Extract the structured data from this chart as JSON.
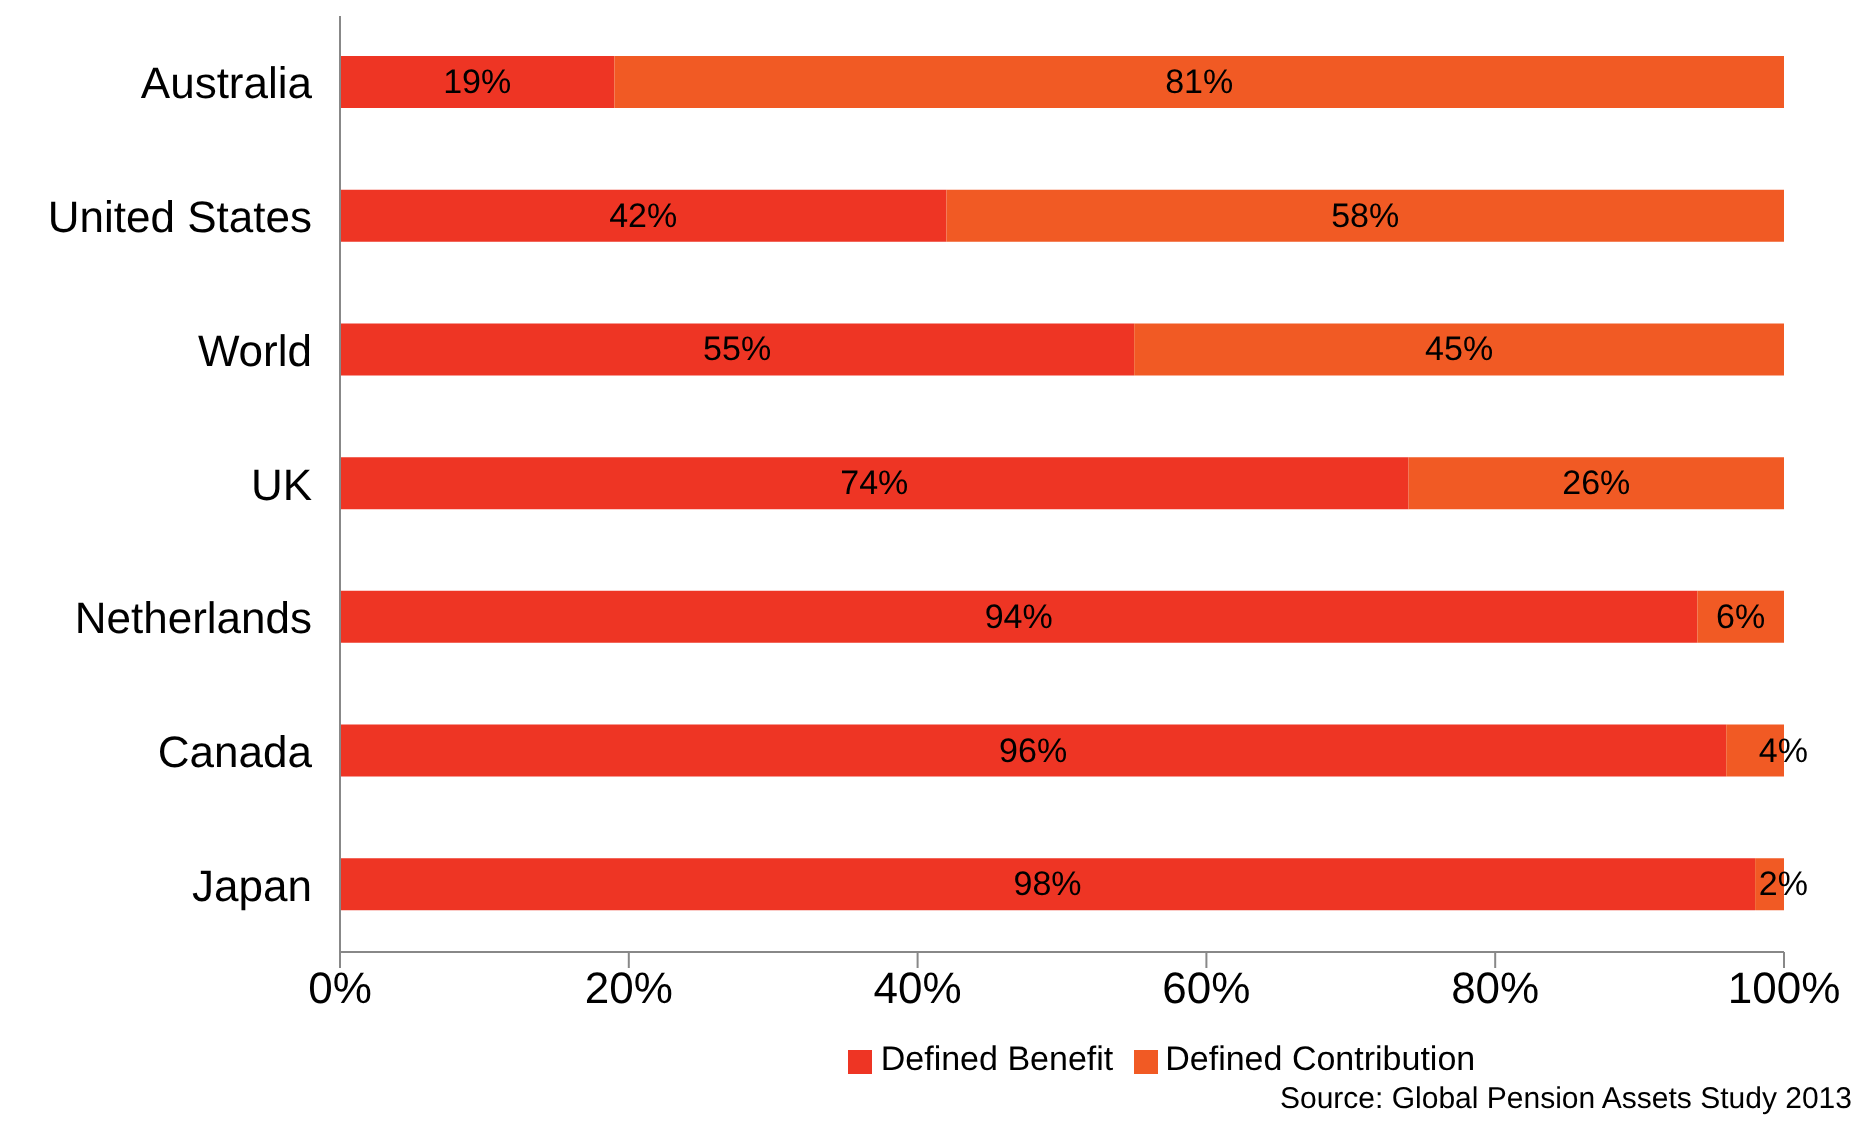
{
  "chart_data": {
    "type": "bar",
    "orientation": "horizontal",
    "stacked": true,
    "categories": [
      "Australia",
      "United States",
      "World",
      "UK",
      "Netherlands",
      "Canada",
      "Japan"
    ],
    "series": [
      {
        "name": "Defined Benefit",
        "color": "#ee3524",
        "values": [
          19,
          42,
          55,
          74,
          94,
          96,
          98
        ],
        "value_labels": [
          "19%",
          "42%",
          "55%",
          "74%",
          "94%",
          "96%",
          "98%"
        ]
      },
      {
        "name": "Defined Contribution",
        "color": "#f15a24",
        "values": [
          81,
          58,
          45,
          26,
          6,
          4,
          2
        ],
        "value_labels": [
          "81%",
          "58%",
          "45%",
          "26%",
          "6%",
          "4%",
          "2%"
        ]
      }
    ],
    "xlim": [
      0,
      100
    ],
    "xticks": [
      {
        "value": 0,
        "label": "0%"
      },
      {
        "value": 20,
        "label": "20%"
      },
      {
        "value": 40,
        "label": "40%"
      },
      {
        "value": 60,
        "label": "60%"
      },
      {
        "value": 80,
        "label": "80%"
      },
      {
        "value": 100,
        "label": "100%"
      }
    ],
    "grid": false,
    "legend": "bottom",
    "annotations": [
      "Source: Global Pension Assets Study 2013"
    ]
  }
}
